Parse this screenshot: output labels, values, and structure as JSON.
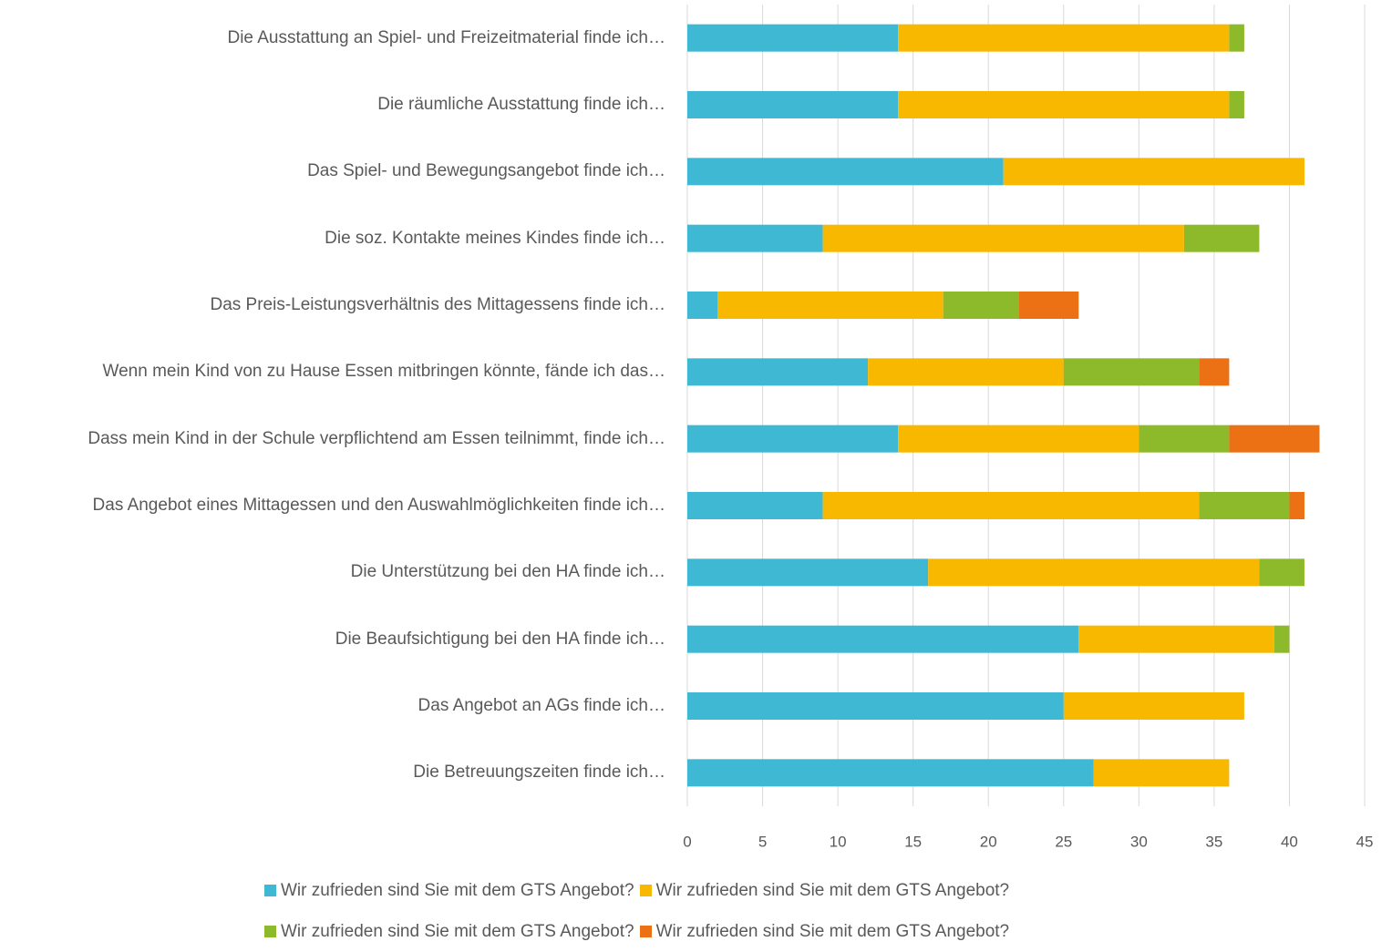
{
  "chart_data": {
    "type": "stacked-bar-horizontal",
    "categories": [
      "Die Ausstattung an Spiel- und Freizeitmaterial finde ich…",
      "Die räumliche Ausstattung finde ich…",
      "Das Spiel- und Bewegungsangebot finde ich…",
      "Die soz. Kontakte meines Kindes finde ich…",
      "Das Preis-Leistungsverhältnis des Mittagessens finde ich…",
      "Wenn mein Kind von zu Hause Essen mitbringen könnte, fände ich das…",
      "Dass mein Kind in der Schule verpflichtend am Essen teilnimmt, finde ich…",
      "Das Angebot eines Mittagessen und den Auswahlmöglichkeiten finde ich…",
      "Die Unterstützung bei den HA finde ich…",
      "Die Beaufsichtigung bei den HA finde ich…",
      "Das Angebot an AGs finde ich…",
      "Die Betreuungszeiten finde ich…"
    ],
    "series": [
      {
        "name": "Wir zufrieden sind Sie mit dem GTS Angebot?",
        "color": "#3fb9d3",
        "values": [
          14,
          14,
          21,
          9,
          2,
          12,
          14,
          9,
          16,
          26,
          25,
          27
        ]
      },
      {
        "name": "Wir zufrieden sind Sie mit dem GTS Angebot?",
        "color": "#f9b800",
        "values": [
          22,
          22,
          20,
          24,
          15,
          13,
          16,
          25,
          22,
          13,
          12,
          9
        ]
      },
      {
        "name": "Wir zufrieden sind Sie mit dem GTS Angebot?",
        "color": "#8dba2a",
        "values": [
          1,
          1,
          0,
          5,
          5,
          9,
          6,
          6,
          3,
          1,
          0,
          0
        ]
      },
      {
        "name": "Wir zufrieden sind Sie mit dem GTS Angebot?",
        "color": "#ec7014",
        "values": [
          0,
          0,
          0,
          0,
          4,
          2,
          6,
          1,
          0,
          0,
          0,
          0
        ]
      }
    ],
    "xlim": [
      0,
      45
    ],
    "xticks": [
      0,
      5,
      10,
      15,
      20,
      25,
      30,
      35,
      40,
      45
    ],
    "grid": true,
    "legend": "bottom"
  }
}
